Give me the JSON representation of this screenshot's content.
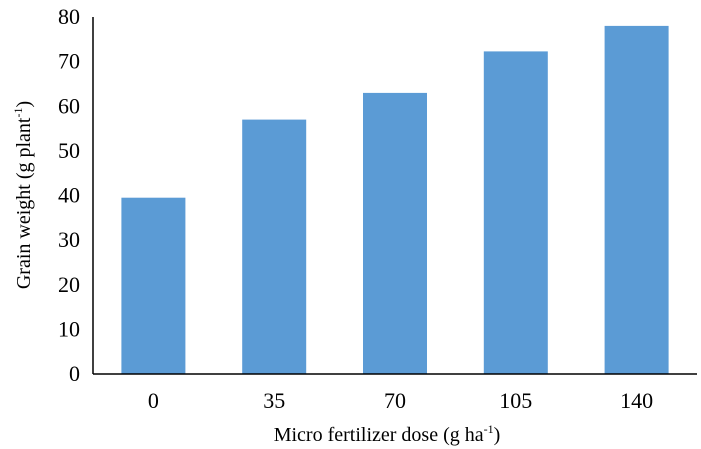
{
  "chart_data": {
    "type": "bar",
    "title": "",
    "categories": [
      "0",
      "35",
      "70",
      "105",
      "140"
    ],
    "values": [
      39.5,
      57,
      63,
      72.3,
      78
    ],
    "xlabel": "Micro fertilizer dose (g ha-1)",
    "xlabel_parts": {
      "before": "Micro fertilizer dose (g ha",
      "sup": "-1",
      "after": ")"
    },
    "ylabel": "Grain weight (g plant-1)",
    "ylabel_parts": {
      "before": "Grain weight (g plant",
      "sup": "-1",
      "after": ")"
    },
    "ylim": [
      0,
      80
    ],
    "yticks": [
      0,
      10,
      20,
      30,
      40,
      50,
      60,
      70,
      80
    ],
    "bar_color": "#5B9BD5",
    "axis_color": "#000000",
    "grid": false,
    "legend": "none"
  }
}
